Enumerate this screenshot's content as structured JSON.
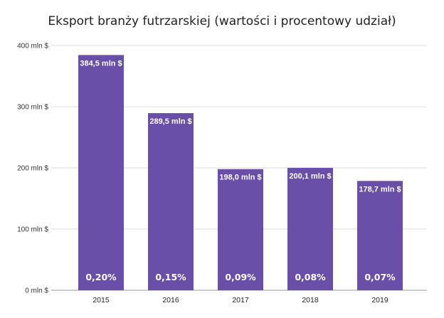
{
  "chart_data": {
    "type": "bar",
    "title": "Eksport branży futrzarskiej (wartości i procentowy udział)",
    "categories": [
      "2015",
      "2016",
      "2017",
      "2018",
      "2019"
    ],
    "values": [
      384.5,
      289.5,
      198.0,
      200.1,
      178.7
    ],
    "value_labels": [
      "384,5 mln $",
      "289,5 mln $",
      "198,0 mln $",
      "200,1 mln $",
      "178,7 mln $"
    ],
    "share_labels": [
      "0,20%",
      "0,15%",
      "0,09%",
      "0,08%",
      "0,07%"
    ],
    "ylim": [
      0,
      400
    ],
    "yticks": [
      0,
      100,
      200,
      300,
      400
    ],
    "ytick_labels": [
      "0 mln $",
      "100 mln $",
      "200 mln $",
      "300 mln $",
      "400 mln $"
    ],
    "grid": true,
    "bar_color": "#6a4fa8"
  }
}
